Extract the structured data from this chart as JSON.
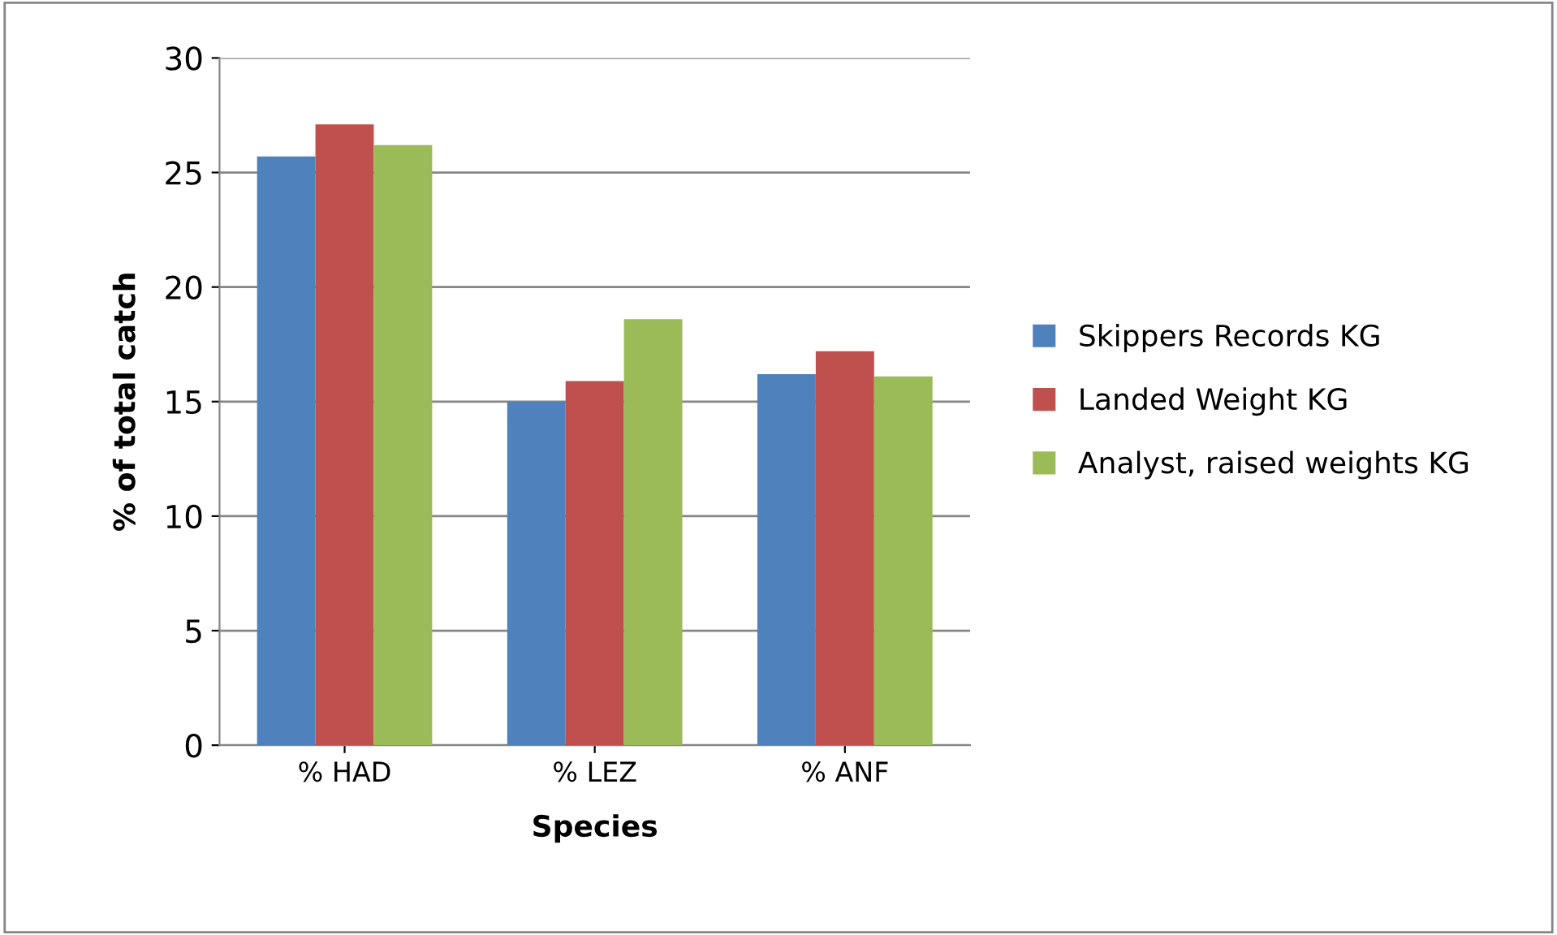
{
  "chart_data": {
    "type": "bar",
    "xlabel": "Species",
    "ylabel": "% of total catch",
    "categories": [
      "% HAD",
      "% LEZ",
      "% ANF"
    ],
    "series": [
      {
        "name": "Skippers Records KG",
        "color": "#4f81bd",
        "values": [
          25.7,
          15.0,
          16.2
        ]
      },
      {
        "name": "Landed Weight KG",
        "color": "#c0504d",
        "values": [
          27.1,
          15.9,
          17.2
        ]
      },
      {
        "name": "Analyst, raised weights KG",
        "color": "#9bbb59",
        "values": [
          26.2,
          18.6,
          16.1
        ]
      }
    ],
    "ylim": [
      0,
      30
    ],
    "yticks": [
      0,
      5,
      10,
      15,
      20,
      25,
      30
    ],
    "grid": "y",
    "legend": "right"
  }
}
